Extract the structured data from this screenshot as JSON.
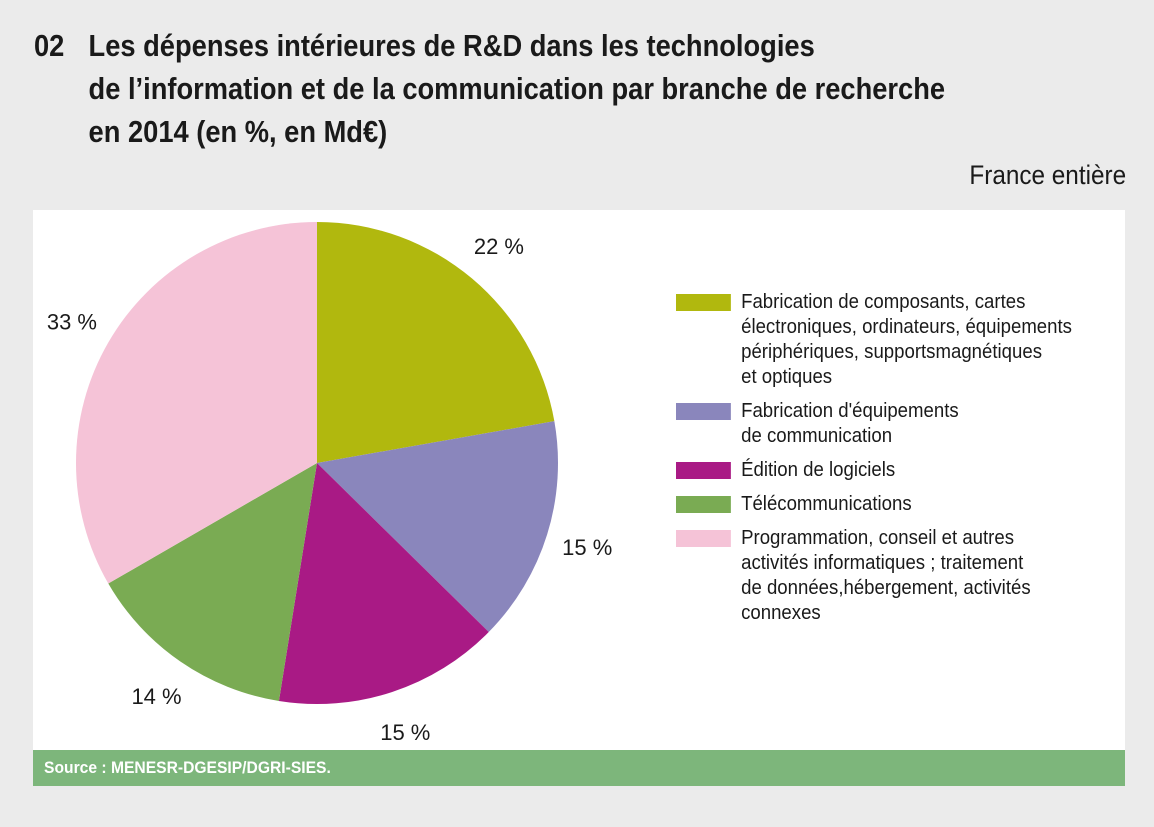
{
  "title": {
    "number": "02",
    "lines": [
      "Les dépenses intérieures de R&D dans les technologies",
      "de l’information et de la communication par branche de recherche",
      "en 2014 (en %, en Md€)"
    ]
  },
  "subtitle": "France entière",
  "source": "Source : MENESR-DGESIP/DGRI-SIES.",
  "chart_data": {
    "type": "pie",
    "title": "Les dépenses intérieures de R&D dans les technologies de l’information et de la communication par branche de recherche en 2014 (en %, en Md€)",
    "start": "top",
    "direction": "clockwise",
    "legend_placement": "right",
    "slices": [
      {
        "label": "Fabrication de composants, cartes électroniques, ordinateurs, équipements périphériques, supportsmagnétiques et optiques",
        "legend_lines": [
          "Fabrication de composants, cartes",
          "électroniques, ordinateurs, équipements",
          "périphériques, supportsmagnétiques",
          "et optiques"
        ],
        "value": 22,
        "display": "22 %",
        "color": "#b1b80e"
      },
      {
        "label": "Fabrication d'équipements de communication",
        "legend_lines": [
          "Fabrication d'équipements",
          "de communication"
        ],
        "value": 15,
        "display": "15 %",
        "color": "#8a86bc"
      },
      {
        "label": "Édition de logiciels",
        "legend_lines": [
          "Édition de logiciels"
        ],
        "value": 15,
        "display": "15 %",
        "color": "#a91a85"
      },
      {
        "label": "Télécommunications",
        "legend_lines": [
          "Télécommunications"
        ],
        "value": 14,
        "display": "14 %",
        "color": "#7aab53"
      },
      {
        "label": "Programmation, conseil et autres activités informatiques ; traitement de données,hébergement, activités connexes",
        "legend_lines": [
          "Programmation, conseil et autres",
          "activités informatiques ; traitement",
          "de données,hébergement, activités",
          "connexes"
        ],
        "value": 33,
        "display": "33 %",
        "color": "#f5c3d7"
      }
    ]
  }
}
